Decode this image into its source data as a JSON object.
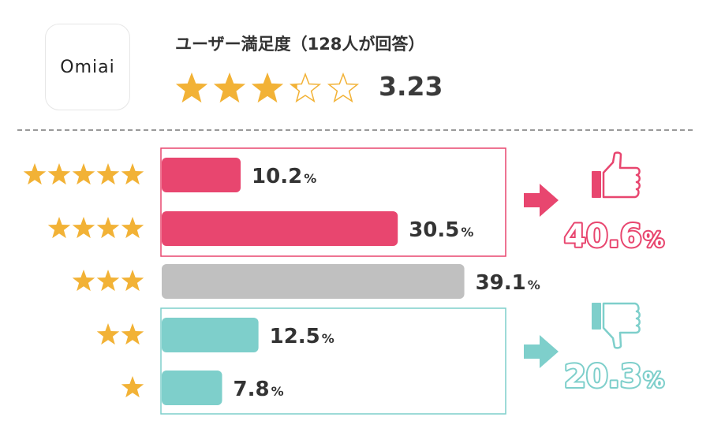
{
  "header": {
    "logo_text": "Omiai",
    "title": "ユーザー満足度（128人が回答）",
    "rating_value": "3.23",
    "rating_stars": 3.23,
    "rating_max": 5
  },
  "colors": {
    "star": "#f2b236",
    "star_outline": "#f2b236",
    "high": "#e8466f",
    "mid": "#c0c0c0",
    "low": "#7ecfcb"
  },
  "chart_data": {
    "type": "bar",
    "orientation": "horizontal",
    "categories": [
      "★★★★★",
      "★★★★",
      "★★★",
      "★★",
      "★"
    ],
    "values": [
      10.2,
      30.5,
      39.1,
      12.5,
      7.8
    ],
    "value_labels": [
      "10.2",
      "30.5",
      "39.1",
      "12.5",
      "7.8"
    ],
    "unit": "%",
    "groups": [
      {
        "label": "40.6",
        "unit": "%",
        "icon": "thumbs-up-icon",
        "covers": [
          0,
          1
        ],
        "color": "#e8466f"
      },
      {
        "label": "20.3",
        "unit": "%",
        "icon": "thumbs-down-icon",
        "covers": [
          3,
          4
        ],
        "color": "#7ecfcb"
      }
    ]
  }
}
